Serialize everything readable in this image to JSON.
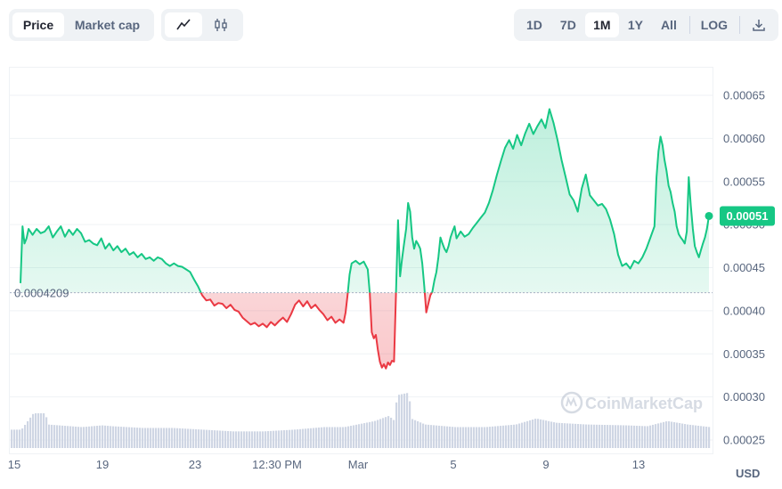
{
  "toolbar": {
    "price_label": "Price",
    "marketcap_label": "Market cap",
    "line_icon": "line-chart-icon",
    "candle_icon": "candlestick-icon",
    "ranges": [
      "1D",
      "7D",
      "1M",
      "1Y",
      "All"
    ],
    "active_range": "1M",
    "log_label": "LOG",
    "download_icon": "download-icon"
  },
  "chart_data": {
    "type": "area",
    "currency": "USD",
    "reference_price": 0.0004209,
    "reference_label": "0.0004209",
    "current_label": "0.00051",
    "watermark": "CoinMarketCap",
    "y_ticks": [
      "0.00065",
      "0.00060",
      "0.00055",
      "0.00050",
      "0.00045",
      "0.00040",
      "0.00035",
      "0.00030",
      "0.00025"
    ],
    "ylim": [
      0.00023,
      0.00068
    ],
    "x_ticks": [
      "15",
      "19",
      "23",
      "12:30 PM",
      "Mar",
      "5",
      "9",
      "13"
    ],
    "colors": {
      "up": "#16c784",
      "down": "#ea3943",
      "volume": "#cfd6e4"
    },
    "price_series": [
      [
        0,
        0.000432
      ],
      [
        1,
        0.000498
      ],
      [
        2,
        0.000478
      ],
      [
        3,
        0.000484
      ],
      [
        4,
        0.000495
      ],
      [
        6,
        0.000488
      ],
      [
        8,
        0.000495
      ],
      [
        10,
        0.00049
      ],
      [
        12,
        0.000492
      ],
      [
        14,
        0.000498
      ],
      [
        16,
        0.000485
      ],
      [
        18,
        0.000492
      ],
      [
        20,
        0.000498
      ],
      [
        22,
        0.000486
      ],
      [
        24,
        0.000494
      ],
      [
        26,
        0.000488
      ],
      [
        28,
        0.000495
      ],
      [
        30,
        0.00049
      ],
      [
        32,
        0.00048
      ],
      [
        34,
        0.000482
      ],
      [
        36,
        0.000478
      ],
      [
        38,
        0.000476
      ],
      [
        40,
        0.000484
      ],
      [
        42,
        0.000472
      ],
      [
        44,
        0.000478
      ],
      [
        46,
        0.00047
      ],
      [
        48,
        0.000475
      ],
      [
        50,
        0.000468
      ],
      [
        52,
        0.000472
      ],
      [
        54,
        0.000465
      ],
      [
        56,
        0.000468
      ],
      [
        58,
        0.000462
      ],
      [
        60,
        0.000466
      ],
      [
        62,
        0.00046
      ],
      [
        64,
        0.000462
      ],
      [
        66,
        0.000458
      ],
      [
        68,
        0.000462
      ],
      [
        70,
        0.00046
      ],
      [
        72,
        0.000455
      ],
      [
        74,
        0.000452
      ],
      [
        76,
        0.000455
      ],
      [
        78,
        0.000452
      ],
      [
        80,
        0.000451
      ],
      [
        82,
        0.000448
      ],
      [
        84,
        0.000445
      ],
      [
        86,
        0.000436
      ],
      [
        88,
        0.000428
      ],
      [
        90,
        0.000418
      ],
      [
        92,
        0.000412
      ],
      [
        94,
        0.000413
      ],
      [
        96,
        0.000406
      ],
      [
        98,
        0.000409
      ],
      [
        100,
        0.000408
      ],
      [
        102,
        0.000403
      ],
      [
        104,
        0.000407
      ],
      [
        106,
        0.000401
      ],
      [
        108,
        0.000399
      ],
      [
        110,
        0.000392
      ],
      [
        112,
        0.000388
      ],
      [
        114,
        0.000384
      ],
      [
        116,
        0.000386
      ],
      [
        118,
        0.000382
      ],
      [
        120,
        0.000385
      ],
      [
        122,
        0.000381
      ],
      [
        124,
        0.000387
      ],
      [
        126,
        0.000383
      ],
      [
        128,
        0.000388
      ],
      [
        130,
        0.000392
      ],
      [
        132,
        0.000387
      ],
      [
        134,
        0.000396
      ],
      [
        136,
        0.000407
      ],
      [
        138,
        0.000412
      ],
      [
        140,
        0.000405
      ],
      [
        142,
        0.000411
      ],
      [
        144,
        0.000403
      ],
      [
        146,
        0.000407
      ],
      [
        148,
        0.000401
      ],
      [
        150,
        0.000396
      ],
      [
        152,
        0.000389
      ],
      [
        154,
        0.000393
      ],
      [
        156,
        0.000386
      ],
      [
        158,
        0.00039
      ],
      [
        160,
        0.000386
      ],
      [
        161,
        0.000398
      ],
      [
        162,
        0.000418
      ],
      [
        163,
        0.000442
      ],
      [
        164,
        0.000455
      ],
      [
        166,
        0.000458
      ],
      [
        168,
        0.000454
      ],
      [
        170,
        0.000457
      ],
      [
        172,
        0.000448
      ],
      [
        173,
        0.00042
      ],
      [
        174,
        0.000375
      ],
      [
        175,
        0.000368
      ],
      [
        176,
        0.000372
      ],
      [
        177,
        0.000355
      ],
      [
        178,
        0.000341
      ],
      [
        179,
        0.000334
      ],
      [
        180,
        0.000338
      ],
      [
        181,
        0.000333
      ],
      [
        182,
        0.00034
      ],
      [
        183,
        0.000337
      ],
      [
        184,
        0.000342
      ],
      [
        185,
        0.000341
      ],
      [
        186,
        0.00042
      ],
      [
        187,
        0.000505
      ],
      [
        188,
        0.00044
      ],
      [
        189,
        0.00046
      ],
      [
        190,
        0.000478
      ],
      [
        191,
        0.000495
      ],
      [
        192,
        0.000525
      ],
      [
        193,
        0.000515
      ],
      [
        194,
        0.000485
      ],
      [
        195,
        0.000472
      ],
      [
        196,
        0.000481
      ],
      [
        197,
        0.000477
      ],
      [
        198,
        0.000472
      ],
      [
        199,
        0.000455
      ],
      [
        200,
        0.000428
      ],
      [
        201,
        0.000398
      ],
      [
        202,
        0.000408
      ],
      [
        203,
        0.000418
      ],
      [
        204,
        0.000422
      ],
      [
        205,
        0.000435
      ],
      [
        206,
        0.000445
      ],
      [
        207,
        0.000462
      ],
      [
        208,
        0.000485
      ],
      [
        209,
        0.000478
      ],
      [
        210,
        0.000472
      ],
      [
        211,
        0.000468
      ],
      [
        212,
        0.000475
      ],
      [
        213,
        0.000485
      ],
      [
        214,
        0.000492
      ],
      [
        215,
        0.000498
      ],
      [
        216,
        0.000484
      ],
      [
        218,
        0.000492
      ],
      [
        220,
        0.000486
      ],
      [
        222,
        0.000489
      ],
      [
        224,
        0.000496
      ],
      [
        226,
        0.000502
      ],
      [
        228,
        0.000508
      ],
      [
        230,
        0.000514
      ],
      [
        232,
        0.000525
      ],
      [
        234,
        0.00054
      ],
      [
        236,
        0.000558
      ],
      [
        238,
        0.000574
      ],
      [
        240,
        0.000589
      ],
      [
        242,
        0.000598
      ],
      [
        244,
        0.000588
      ],
      [
        246,
        0.000604
      ],
      [
        248,
        0.000592
      ],
      [
        250,
        0.000606
      ],
      [
        252,
        0.000617
      ],
      [
        254,
        0.000605
      ],
      [
        256,
        0.000614
      ],
      [
        258,
        0.000622
      ],
      [
        260,
        0.000612
      ],
      [
        262,
        0.000634
      ],
      [
        264,
        0.000618
      ],
      [
        266,
        0.000598
      ],
      [
        268,
        0.000575
      ],
      [
        270,
        0.000555
      ],
      [
        272,
        0.000535
      ],
      [
        274,
        0.000528
      ],
      [
        276,
        0.000515
      ],
      [
        278,
        0.000542
      ],
      [
        280,
        0.000558
      ],
      [
        282,
        0.000534
      ],
      [
        284,
        0.000528
      ],
      [
        286,
        0.000522
      ],
      [
        288,
        0.000524
      ],
      [
        290,
        0.000518
      ],
      [
        292,
        0.000506
      ],
      [
        294,
        0.000489
      ],
      [
        296,
        0.000465
      ],
      [
        298,
        0.000452
      ],
      [
        300,
        0.000455
      ],
      [
        302,
        0.000449
      ],
      [
        304,
        0.000458
      ],
      [
        306,
        0.000455
      ],
      [
        308,
        0.000462
      ],
      [
        310,
        0.000472
      ],
      [
        312,
        0.000485
      ],
      [
        314,
        0.000498
      ],
      [
        315,
        0.000555
      ],
      [
        316,
        0.000585
      ],
      [
        317,
        0.000602
      ],
      [
        318,
        0.000592
      ],
      [
        319,
        0.000575
      ],
      [
        320,
        0.000562
      ],
      [
        321,
        0.000545
      ],
      [
        322,
        0.000538
      ],
      [
        323,
        0.000525
      ],
      [
        324,
        0.000515
      ],
      [
        325,
        0.000498
      ],
      [
        326,
        0.000489
      ],
      [
        327,
        0.000485
      ],
      [
        328,
        0.000482
      ],
      [
        329,
        0.000478
      ],
      [
        330,
        0.000492
      ],
      [
        331,
        0.000555
      ],
      [
        332,
        0.000522
      ],
      [
        333,
        0.000495
      ],
      [
        334,
        0.000475
      ],
      [
        335,
        0.000468
      ],
      [
        336,
        0.000462
      ],
      [
        337,
        0.00047
      ],
      [
        338,
        0.000478
      ],
      [
        339,
        0.000485
      ],
      [
        340,
        0.000495
      ],
      [
        341,
        0.00051
      ]
    ],
    "volume_series": [
      [
        0,
        0.000262
      ],
      [
        6,
        0.000281
      ],
      [
        12,
        0.000281
      ],
      [
        13,
        0.000268
      ],
      [
        30,
        0.000265
      ],
      [
        40,
        0.000267
      ],
      [
        45,
        0.000266
      ],
      [
        60,
        0.000264
      ],
      [
        75,
        0.000264
      ],
      [
        90,
        0.000262
      ],
      [
        105,
        0.00026
      ],
      [
        120,
        0.00026
      ],
      [
        135,
        0.000262
      ],
      [
        150,
        0.000265
      ],
      [
        160,
        0.000265
      ],
      [
        175,
        0.000272
      ],
      [
        182,
        0.000278
      ],
      [
        185,
        0.000272
      ],
      [
        186,
        0.000302
      ],
      [
        192,
        0.000305
      ],
      [
        193,
        0.000275
      ],
      [
        200,
        0.000268
      ],
      [
        215,
        0.000265
      ],
      [
        230,
        0.000265
      ],
      [
        245,
        0.000268
      ],
      [
        255,
        0.000275
      ],
      [
        265,
        0.00027
      ],
      [
        280,
        0.000268
      ],
      [
        300,
        0.000267
      ],
      [
        310,
        0.000266
      ],
      [
        320,
        0.000272
      ],
      [
        330,
        0.000268
      ],
      [
        341,
        0.000265
      ]
    ]
  }
}
